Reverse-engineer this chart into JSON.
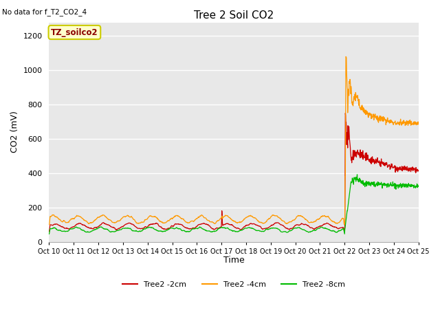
{
  "title": "Tree 2 Soil CO2",
  "no_data_text": "No data for f_T2_CO2_4",
  "ylabel": "CO2 (mV)",
  "xlabel": "Time",
  "annotation_box": "TZ_soilco2",
  "background_color": "#e8e8e8",
  "ylim": [
    0,
    1280
  ],
  "yticks": [
    0,
    200,
    400,
    600,
    800,
    1000,
    1200
  ],
  "xtick_labels": [
    "Oct 10",
    "Oct 11",
    "Oct 12",
    "Oct 13",
    "Oct 14",
    "Oct 15",
    "Oct 16",
    "Oct 17",
    "Oct 18",
    "Oct 19",
    "Oct 20",
    "Oct 21",
    "Oct 22",
    "Oct 23",
    "Oct 24",
    "Oct 25"
  ],
  "line_colors": {
    "red": "#cc0000",
    "orange": "#ff9900",
    "green": "#00bb00"
  },
  "legend": [
    {
      "label": "Tree2 -2cm",
      "color": "#cc0000"
    },
    {
      "label": "Tree2 -4cm",
      "color": "#ff9900"
    },
    {
      "label": "Tree2 -8cm",
      "color": "#00bb00"
    }
  ]
}
